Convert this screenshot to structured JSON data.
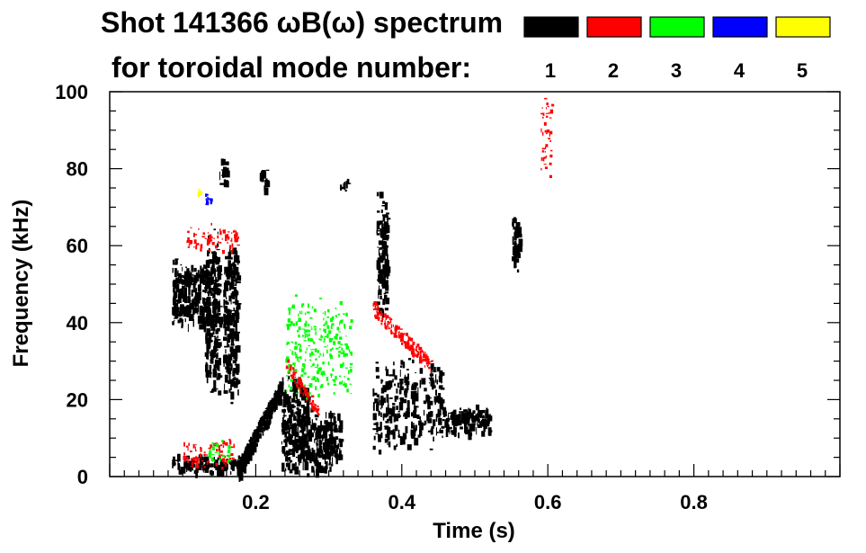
{
  "chart_data": {
    "type": "spectrogram",
    "title_line1": "Shot 141366 ωB(ω) spectrum",
    "title_line2": "for toroidal mode number:",
    "xlabel": "Time (s)",
    "ylabel": "Frequency (kHz)",
    "xlim": [
      0.0,
      1.0
    ],
    "ylim": [
      0,
      100
    ],
    "xticks": [
      {
        "value": 0.2,
        "label": "0.2"
      },
      {
        "value": 0.4,
        "label": "0.4"
      },
      {
        "value": 0.6,
        "label": "0.6"
      },
      {
        "value": 0.8,
        "label": "0.8"
      }
    ],
    "yticks": [
      {
        "value": 0,
        "label": "0"
      },
      {
        "value": 20,
        "label": "20"
      },
      {
        "value": 40,
        "label": "40"
      },
      {
        "value": 60,
        "label": "60"
      },
      {
        "value": 80,
        "label": "80"
      },
      {
        "value": 100,
        "label": "100"
      }
    ],
    "legend": [
      {
        "mode": "1",
        "color": "#000000"
      },
      {
        "mode": "2",
        "color": "#ff0000"
      },
      {
        "mode": "3",
        "color": "#00ff00"
      },
      {
        "mode": "4",
        "color": "#0000ff"
      },
      {
        "mode": "5",
        "color": "#ffff00"
      }
    ],
    "features": [
      {
        "mode": 1,
        "name": "early-broadband-blob",
        "t": [
          0.085,
          0.135
        ],
        "f": [
          38,
          58
        ]
      },
      {
        "mode": 1,
        "name": "early-column-1",
        "t": [
          0.13,
          0.15
        ],
        "f": [
          20,
          65
        ]
      },
      {
        "mode": 1,
        "name": "early-column-2",
        "t": [
          0.155,
          0.175
        ],
        "f": [
          18,
          62
        ]
      },
      {
        "mode": 1,
        "name": "blob-80khz-a",
        "t": [
          0.15,
          0.16
        ],
        "f": [
          75,
          84
        ]
      },
      {
        "mode": 1,
        "name": "blob-80khz-b",
        "t": [
          0.205,
          0.215
        ],
        "f": [
          74,
          81
        ]
      },
      {
        "mode": 1,
        "name": "blob-80khz-c",
        "t": [
          0.315,
          0.325
        ],
        "f": [
          73,
          78
        ]
      },
      {
        "mode": 1,
        "name": "low-band-early",
        "t": [
          0.085,
          0.18
        ],
        "f": [
          1,
          6
        ]
      },
      {
        "mode": 1,
        "name": "rising-chirp",
        "t": [
          0.175,
          0.235
        ],
        "f": [
          2,
          24
        ]
      },
      {
        "mode": 1,
        "name": "burst-0.26",
        "t": [
          0.235,
          0.27
        ],
        "f": [
          0,
          28
        ]
      },
      {
        "mode": 1,
        "name": "burst-0.29",
        "t": [
          0.27,
          0.315
        ],
        "f": [
          1,
          18
        ]
      },
      {
        "mode": 1,
        "name": "burst-0.40",
        "t": [
          0.36,
          0.455
        ],
        "f": [
          6,
          32
        ]
      },
      {
        "mode": 1,
        "name": "tail-0.48",
        "t": [
          0.455,
          0.52
        ],
        "f": [
          11,
          19
        ]
      },
      {
        "mode": 1,
        "name": "upper-streak-0.37",
        "t": [
          0.365,
          0.38
        ],
        "f": [
          40,
          75
        ]
      },
      {
        "mode": 1,
        "name": "late-streak-0.55",
        "t": [
          0.55,
          0.56
        ],
        "f": [
          52,
          70
        ]
      },
      {
        "mode": 2,
        "name": "red-60khz-early",
        "t": [
          0.105,
          0.175
        ],
        "f": [
          58,
          66
        ]
      },
      {
        "mode": 2,
        "name": "red-downchirp-0.26",
        "t": [
          0.24,
          0.285
        ],
        "f": [
          17,
          30
        ]
      },
      {
        "mode": 2,
        "name": "red-downchirp-0.40",
        "t": [
          0.36,
          0.44
        ],
        "f": [
          29,
          44
        ]
      },
      {
        "mode": 2,
        "name": "red-low-early",
        "t": [
          0.1,
          0.17
        ],
        "f": [
          2,
          10
        ]
      },
      {
        "mode": 2,
        "name": "red-high-0.60",
        "t": [
          0.59,
          0.605
        ],
        "f": [
          78,
          100
        ]
      },
      {
        "mode": 3,
        "name": "green-low-early",
        "t": [
          0.135,
          0.165
        ],
        "f": [
          4,
          10
        ]
      },
      {
        "mode": 3,
        "name": "green-misc",
        "t": [
          0.24,
          0.33
        ],
        "f": [
          18,
          48
        ]
      },
      {
        "mode": 4,
        "name": "blue-misc",
        "t": [
          0.13,
          0.14
        ],
        "f": [
          70,
          74
        ]
      },
      {
        "mode": 5,
        "name": "yellow-misc",
        "t": [
          0.12,
          0.125
        ],
        "f": [
          73,
          75
        ]
      }
    ]
  }
}
